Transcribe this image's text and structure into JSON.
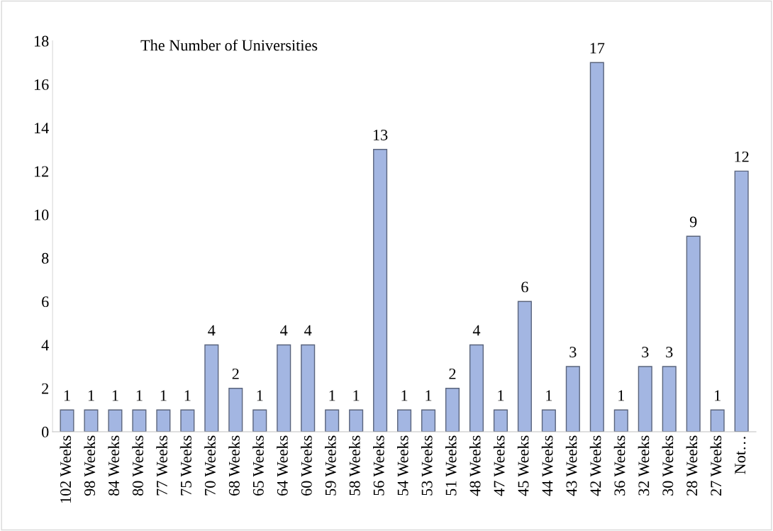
{
  "chart_data": {
    "type": "bar",
    "title": "The Number of Universities",
    "categories": [
      "102 Weeks",
      "98 Weeks",
      "84 Weeks",
      "80 Weeks",
      "77 Weeks",
      "75 Weeks",
      "70 Weeks",
      "68 Weeks",
      "65 Weeks",
      "64 Weeks",
      "60 Weeks",
      "59 Weeks",
      "58 Weeks",
      "56 Weeks",
      "54 Weeks",
      "53 Weeks",
      "51 Weeks",
      "48 Weeks",
      "47 Weeks",
      "45 Weeks",
      "44 Weeks",
      "43 Weeks",
      "42 Weeks",
      "36 Weeks",
      "32 Weeks",
      "30 Weeks",
      "28 Weeks",
      "27 Weeks",
      "Not…"
    ],
    "values": [
      1,
      1,
      1,
      1,
      1,
      1,
      4,
      2,
      1,
      4,
      4,
      1,
      1,
      13,
      1,
      1,
      2,
      4,
      1,
      6,
      1,
      3,
      17,
      1,
      3,
      3,
      9,
      1,
      12
    ],
    "color": "#a3b6e2",
    "ylim": [
      0,
      18
    ],
    "yticks": [
      0,
      2,
      4,
      6,
      8,
      10,
      12,
      14,
      16,
      18
    ],
    "data_labels": true,
    "grid": false,
    "legend": false
  }
}
